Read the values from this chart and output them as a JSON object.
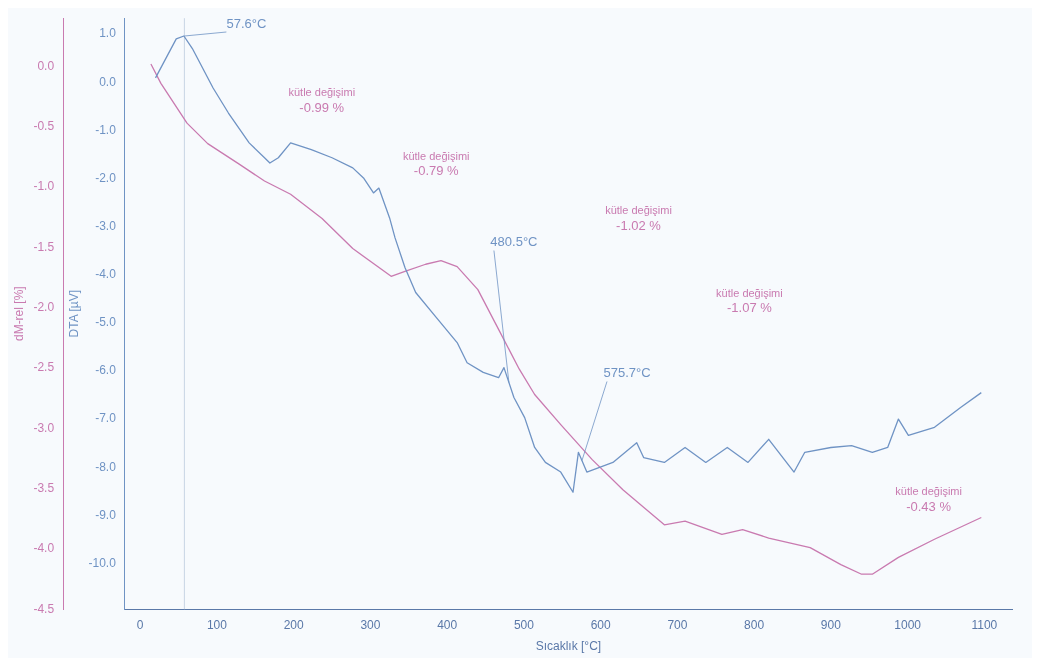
{
  "chart_data": {
    "type": "line",
    "xlabel": "Sıcaklık [°C]",
    "ylabel": "DTA [µV]",
    "y2label": "dM-rel [%]",
    "xlim": [
      -20,
      1136
    ],
    "xticks": [
      0,
      100,
      200,
      300,
      400,
      500,
      600,
      700,
      800,
      900,
      1000,
      1100
    ],
    "ylim": [
      -10.95,
      1.33
    ],
    "yticks": [
      {
        "value": 1,
        "label": "1.0"
      },
      {
        "value": 0,
        "label": "0.0"
      },
      {
        "value": -1,
        "label": "-1.0"
      },
      {
        "value": -2,
        "label": "-2.0"
      },
      {
        "value": -3,
        "label": "-3.0"
      },
      {
        "value": -4,
        "label": "-4.0"
      },
      {
        "value": -5,
        "label": "-5.0"
      },
      {
        "value": -6,
        "label": "-6.0"
      },
      {
        "value": -7,
        "label": "-7.0"
      },
      {
        "value": -8,
        "label": "-8.0"
      },
      {
        "value": -9,
        "label": "-9.0"
      },
      {
        "value": -10,
        "label": "-10.0"
      }
    ],
    "y2lim": [
      -4.5,
      0.4
    ],
    "y2ticks": [
      {
        "value": 0,
        "label": "0.0"
      },
      {
        "value": -0.5,
        "label": "-0.5"
      },
      {
        "value": -1,
        "label": "-1.0"
      },
      {
        "value": -1.5,
        "label": "-1.5"
      },
      {
        "value": -2,
        "label": "-2.0"
      },
      {
        "value": -2.5,
        "label": "-2.5"
      },
      {
        "value": -3,
        "label": "-3.0"
      },
      {
        "value": -3.5,
        "label": "-3.5"
      },
      {
        "value": -4,
        "label": "-4.0"
      },
      {
        "value": -4.5,
        "label": "-4.5"
      }
    ],
    "grid": false,
    "legend": false,
    "marker": "none",
    "line_style": "solid",
    "series": [
      {
        "color": "#6f93c4",
        "x": [
          20,
          47,
          57,
          68,
          95,
          115,
          142,
          162,
          169,
          180,
          196,
          223,
          250,
          277,
          291,
          304,
          311,
          325,
          332,
          345,
          359,
          386,
          413,
          426,
          447,
          467,
          474,
          487,
          501,
          514,
          528,
          548,
          564,
          571,
          582,
          616,
          647,
          656,
          683,
          710,
          737,
          765,
          792,
          819,
          852,
          866,
          900,
          927,
          954,
          974,
          988,
          1001,
          1035,
          1069,
          1096
        ],
        "values": [
          0.09,
          0.9,
          0.96,
          0.7,
          -0.12,
          -0.64,
          -1.26,
          -1.57,
          -1.68,
          -1.57,
          -1.26,
          -1.4,
          -1.57,
          -1.78,
          -1.99,
          -2.3,
          -2.2,
          -2.82,
          -3.23,
          -3.85,
          -4.37,
          -4.89,
          -5.41,
          -5.83,
          -6.03,
          -6.14,
          -5.93,
          -6.55,
          -6.97,
          -7.59,
          -7.9,
          -8.1,
          -8.52,
          -7.69,
          -8.1,
          -7.9,
          -7.49,
          -7.8,
          -7.9,
          -7.59,
          -7.9,
          -7.59,
          -7.9,
          -7.42,
          -8.1,
          -7.69,
          -7.59,
          -7.55,
          -7.69,
          -7.59,
          -7.0,
          -7.34,
          -7.17,
          -6.76,
          -6.45
        ]
      },
      {
        "color": "#c97ab0",
        "axis": "y2",
        "x": [
          14,
          27,
          61,
          88,
          129,
          162,
          196,
          237,
          277,
          327,
          345,
          372,
          392,
          413,
          440,
          467,
          494,
          514,
          548,
          589,
          629,
          683,
          710,
          758,
          785,
          819,
          873,
          913,
          940,
          954,
          988,
          1035,
          1096
        ],
        "values": [
          0.02,
          -0.14,
          -0.47,
          -0.64,
          -0.81,
          -0.95,
          -1.06,
          -1.26,
          -1.51,
          -1.74,
          -1.7,
          -1.64,
          -1.61,
          -1.66,
          -1.85,
          -2.18,
          -2.51,
          -2.72,
          -2.97,
          -3.26,
          -3.51,
          -3.8,
          -3.77,
          -3.88,
          -3.84,
          -3.91,
          -3.99,
          -4.13,
          -4.21,
          -4.21,
          -4.07,
          -3.92,
          -3.74
        ]
      }
    ],
    "ref_lines": [
      {
        "axis": "x",
        "value": 57.6,
        "color": "#c8d4e4"
      }
    ],
    "annotations": [
      {
        "text": "57.6°C",
        "x": 57.6,
        "y": 0.96
      },
      "kütle değişimi\n-0.99 %",
      "kütle değişimi\n-0.79 %",
      {
        "text": "480.5°C",
        "x": 480.5,
        "y": -6.24
      },
      "kütle değişimi\n-1.02 %",
      "kütle değişimi\n-1.07 %",
      {
        "text": "575.7°C",
        "x": 575.7,
        "y": -7.86
      },
      "kütle değişimi\n-0.43 %"
    ]
  }
}
